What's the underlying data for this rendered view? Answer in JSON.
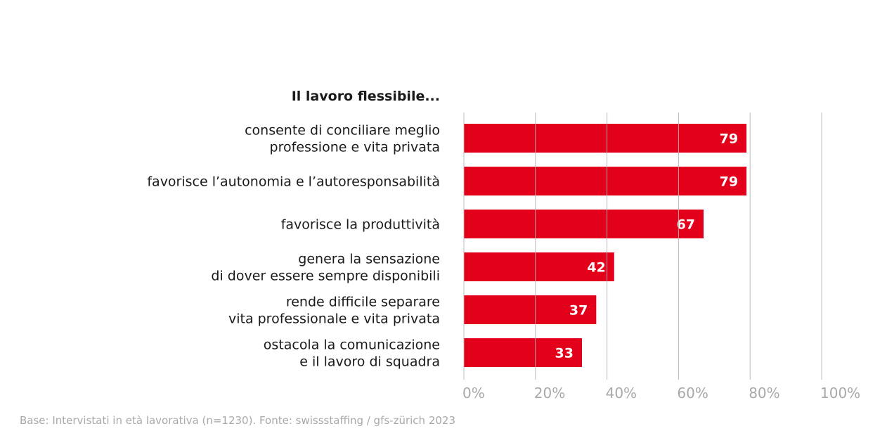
{
  "chart_data": {
    "type": "bar",
    "orientation": "horizontal",
    "title": "Il lavoro flessibile...",
    "categories": [
      [
        "consente di conciliare meglio",
        "professione e vita privata"
      ],
      [
        "favorisce l’autonomia e l’autoresponsabilità"
      ],
      [
        "favorisce la produttività"
      ],
      [
        "genera la sensazione",
        "di dover essere sempre disponibili"
      ],
      [
        "rende difficile separare",
        "vita professionale e vita privata"
      ],
      [
        "ostacola la comunicazione",
        "e il lavoro di squadra"
      ]
    ],
    "values": [
      79,
      79,
      67,
      42,
      37,
      33
    ],
    "xlim": [
      0,
      100
    ],
    "xticks": [
      "0%",
      "20%",
      "40%",
      "60%",
      "80%",
      "100%"
    ],
    "grid": true,
    "bar_color": "#e2001a",
    "grid_color": "#b5b5b5"
  },
  "source": "Base: Intervistati in età lavorativa (n=1230). Fonte: swissstaffing / gfs-zürich 2023"
}
